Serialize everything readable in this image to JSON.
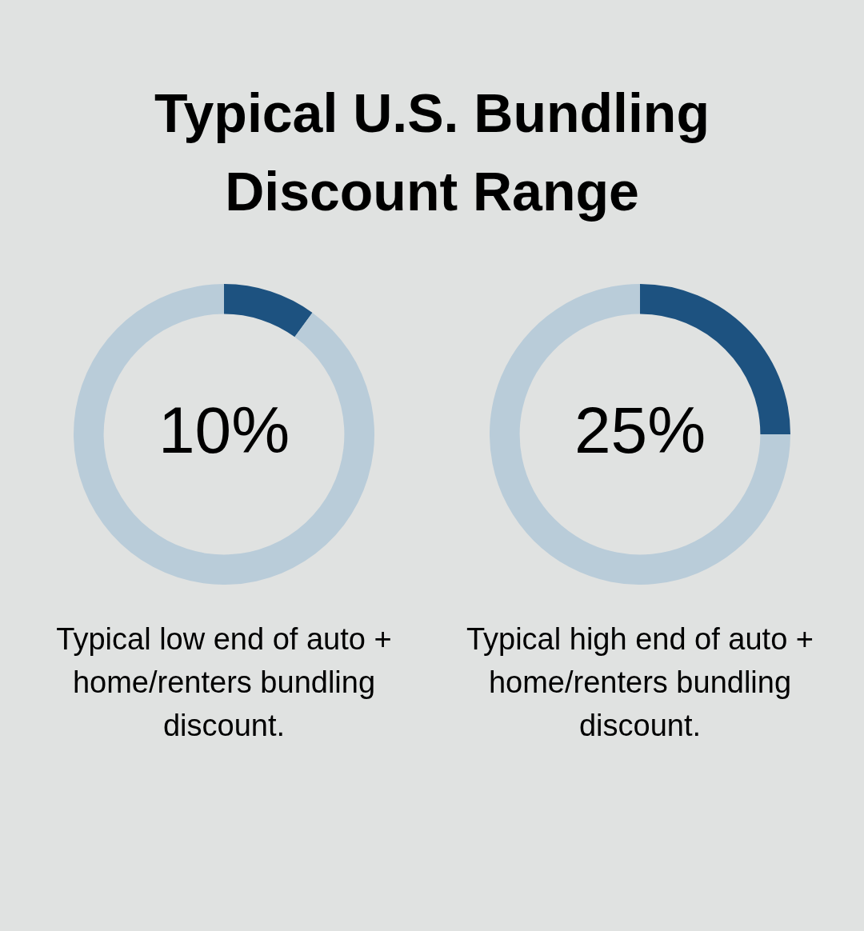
{
  "chart_data": [
    {
      "type": "donut",
      "title": "Typical U.S. Bundling Discount Range",
      "categories": [
        null,
        null
      ],
      "values": [
        10,
        90
      ],
      "colors": [
        "#1d5280",
        "#b9ccd9"
      ],
      "value_labels": [
        "10%",
        null
      ],
      "annotations": [
        "Typical low end of auto + home/renters bundling discount."
      ]
    },
    {
      "type": "donut",
      "categories": [
        null,
        null
      ],
      "values": [
        25,
        75
      ],
      "colors": [
        "#1d5280",
        "#b9ccd9"
      ],
      "value_labels": [
        "25%",
        null
      ],
      "annotations": [
        "Typical high end of auto + home/renters bundling discount."
      ]
    }
  ]
}
